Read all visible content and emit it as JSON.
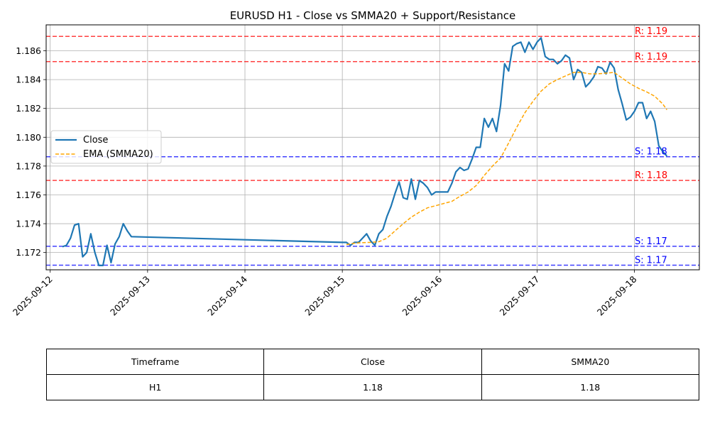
{
  "chart_data": {
    "type": "line",
    "title": "EURUSD H1 - Close vs SMMA20 + Support/Resistance",
    "xlabel": "",
    "ylabel": "",
    "x_tick_labels": [
      "2025-09-12",
      "2025-09-13",
      "2025-09-14",
      "2025-09-15",
      "2025-09-16",
      "2025-09-17",
      "2025-09-18"
    ],
    "y_tick_labels": [
      "1.172",
      "1.174",
      "1.176",
      "1.178",
      "1.180",
      "1.182",
      "1.184",
      "1.186"
    ],
    "xlim": [
      "2025-09-11T23:00",
      "2025-09-18T16:00"
    ],
    "ylim": [
      1.1708,
      1.1878
    ],
    "grid": true,
    "legend_position": "center-left",
    "series": [
      {
        "name": "Close",
        "color": "#1f77b4",
        "style": "solid",
        "points": [
          [
            "2025-09-12T03:00",
            1.1724
          ],
          [
            "2025-09-12T04:00",
            1.1725
          ],
          [
            "2025-09-12T05:00",
            1.173
          ],
          [
            "2025-09-12T06:00",
            1.1739
          ],
          [
            "2025-09-12T07:00",
            1.174
          ],
          [
            "2025-09-12T08:00",
            1.1717
          ],
          [
            "2025-09-12T09:00",
            1.172
          ],
          [
            "2025-09-12T10:00",
            1.1733
          ],
          [
            "2025-09-12T11:00",
            1.172
          ],
          [
            "2025-09-12T12:00",
            1.1711
          ],
          [
            "2025-09-12T13:00",
            1.1711
          ],
          [
            "2025-09-12T14:00",
            1.1725
          ],
          [
            "2025-09-12T15:00",
            1.1713
          ],
          [
            "2025-09-12T16:00",
            1.1726
          ],
          [
            "2025-09-12T17:00",
            1.1731
          ],
          [
            "2025-09-12T18:00",
            1.174
          ],
          [
            "2025-09-12T19:00",
            1.1735
          ],
          [
            "2025-09-12T20:00",
            1.1731
          ],
          [
            "2025-09-15T00:00",
            1.1727
          ],
          [
            "2025-09-15T01:00",
            1.1727
          ],
          [
            "2025-09-15T02:00",
            1.1725
          ],
          [
            "2025-09-15T03:00",
            1.1727
          ],
          [
            "2025-09-15T04:00",
            1.1727
          ],
          [
            "2025-09-15T05:00",
            1.173
          ],
          [
            "2025-09-15T06:00",
            1.1733
          ],
          [
            "2025-09-15T07:00",
            1.1728
          ],
          [
            "2025-09-15T08:00",
            1.1725
          ],
          [
            "2025-09-15T09:00",
            1.1733
          ],
          [
            "2025-09-15T10:00",
            1.1736
          ],
          [
            "2025-09-15T11:00",
            1.1745
          ],
          [
            "2025-09-15T12:00",
            1.1752
          ],
          [
            "2025-09-15T13:00",
            1.1761
          ],
          [
            "2025-09-15T14:00",
            1.1769
          ],
          [
            "2025-09-15T15:00",
            1.1758
          ],
          [
            "2025-09-15T16:00",
            1.1757
          ],
          [
            "2025-09-15T17:00",
            1.1771
          ],
          [
            "2025-09-15T18:00",
            1.1757
          ],
          [
            "2025-09-15T19:00",
            1.177
          ],
          [
            "2025-09-15T20:00",
            1.1768
          ],
          [
            "2025-09-15T21:00",
            1.1765
          ],
          [
            "2025-09-15T22:00",
            1.176
          ],
          [
            "2025-09-15T23:00",
            1.1762
          ],
          [
            "2025-09-16T00:00",
            1.1762
          ],
          [
            "2025-09-16T01:00",
            1.1762
          ],
          [
            "2025-09-16T02:00",
            1.1762
          ],
          [
            "2025-09-16T03:00",
            1.1768
          ],
          [
            "2025-09-16T04:00",
            1.1776
          ],
          [
            "2025-09-16T05:00",
            1.1779
          ],
          [
            "2025-09-16T06:00",
            1.1777
          ],
          [
            "2025-09-16T07:00",
            1.1778
          ],
          [
            "2025-09-16T08:00",
            1.1785
          ],
          [
            "2025-09-16T09:00",
            1.1793
          ],
          [
            "2025-09-16T10:00",
            1.1793
          ],
          [
            "2025-09-16T11:00",
            1.1813
          ],
          [
            "2025-09-16T12:00",
            1.1807
          ],
          [
            "2025-09-16T13:00",
            1.1813
          ],
          [
            "2025-09-16T14:00",
            1.1804
          ],
          [
            "2025-09-16T15:00",
            1.1822
          ],
          [
            "2025-09-16T16:00",
            1.1851
          ],
          [
            "2025-09-16T17:00",
            1.1846
          ],
          [
            "2025-09-16T18:00",
            1.1863
          ],
          [
            "2025-09-16T19:00",
            1.1865
          ],
          [
            "2025-09-16T20:00",
            1.1866
          ],
          [
            "2025-09-16T21:00",
            1.1859
          ],
          [
            "2025-09-16T22:00",
            1.1866
          ],
          [
            "2025-09-16T23:00",
            1.1861
          ],
          [
            "2025-09-17T00:00",
            1.1866
          ],
          [
            "2025-09-17T01:00",
            1.1869
          ],
          [
            "2025-09-17T02:00",
            1.1856
          ],
          [
            "2025-09-17T03:00",
            1.1854
          ],
          [
            "2025-09-17T04:00",
            1.1854
          ],
          [
            "2025-09-17T05:00",
            1.1851
          ],
          [
            "2025-09-17T06:00",
            1.1853
          ],
          [
            "2025-09-17T07:00",
            1.1857
          ],
          [
            "2025-09-17T08:00",
            1.1855
          ],
          [
            "2025-09-17T09:00",
            1.184
          ],
          [
            "2025-09-17T10:00",
            1.1847
          ],
          [
            "2025-09-17T11:00",
            1.1845
          ],
          [
            "2025-09-17T12:00",
            1.1835
          ],
          [
            "2025-09-17T13:00",
            1.1838
          ],
          [
            "2025-09-17T14:00",
            1.1842
          ],
          [
            "2025-09-17T15:00",
            1.1849
          ],
          [
            "2025-09-17T16:00",
            1.1848
          ],
          [
            "2025-09-17T17:00",
            1.1844
          ],
          [
            "2025-09-17T18:00",
            1.1852
          ],
          [
            "2025-09-17T19:00",
            1.1848
          ],
          [
            "2025-09-17T20:00",
            1.1833
          ],
          [
            "2025-09-17T21:00",
            1.1823
          ],
          [
            "2025-09-17T22:00",
            1.1812
          ],
          [
            "2025-09-17T23:00",
            1.1814
          ],
          [
            "2025-09-18T00:00",
            1.1818
          ],
          [
            "2025-09-18T01:00",
            1.1824
          ],
          [
            "2025-09-18T02:00",
            1.1824
          ],
          [
            "2025-09-18T03:00",
            1.1813
          ],
          [
            "2025-09-18T04:00",
            1.1818
          ],
          [
            "2025-09-18T05:00",
            1.1811
          ],
          [
            "2025-09-18T06:00",
            1.1794
          ],
          [
            "2025-09-18T07:00",
            1.179
          ],
          [
            "2025-09-18T08:00",
            1.1787
          ]
        ]
      },
      {
        "name": "EMA (SMMA20)",
        "color": "#ffa500",
        "style": "dashed",
        "points": [
          [
            "2025-09-15T01:00",
            1.17255
          ],
          [
            "2025-09-15T03:00",
            1.17265
          ],
          [
            "2025-09-15T05:00",
            1.17268
          ],
          [
            "2025-09-15T07:00",
            1.1727
          ],
          [
            "2025-09-15T09:00",
            1.17275
          ],
          [
            "2025-09-15T11:00",
            1.173
          ],
          [
            "2025-09-15T13:00",
            1.1735
          ],
          [
            "2025-09-15T15:00",
            1.174
          ],
          [
            "2025-09-15T17:00",
            1.17445
          ],
          [
            "2025-09-15T19:00",
            1.1748
          ],
          [
            "2025-09-15T21:00",
            1.1751
          ],
          [
            "2025-09-15T23:00",
            1.17525
          ],
          [
            "2025-09-16T01:00",
            1.1754
          ],
          [
            "2025-09-16T03:00",
            1.17555
          ],
          [
            "2025-09-16T05:00",
            1.1759
          ],
          [
            "2025-09-16T07:00",
            1.1762
          ],
          [
            "2025-09-16T09:00",
            1.17665
          ],
          [
            "2025-09-16T11:00",
            1.17735
          ],
          [
            "2025-09-16T13:00",
            1.178
          ],
          [
            "2025-09-16T15:00",
            1.17855
          ],
          [
            "2025-09-16T17:00",
            1.1796
          ],
          [
            "2025-09-16T19:00",
            1.1807
          ],
          [
            "2025-09-16T21:00",
            1.1817
          ],
          [
            "2025-09-16T23:00",
            1.1825
          ],
          [
            "2025-09-17T01:00",
            1.1832
          ],
          [
            "2025-09-17T03:00",
            1.1837
          ],
          [
            "2025-09-17T05:00",
            1.184
          ],
          [
            "2025-09-17T07:00",
            1.18425
          ],
          [
            "2025-09-17T09:00",
            1.1845
          ],
          [
            "2025-09-17T11:00",
            1.1845
          ],
          [
            "2025-09-17T13:00",
            1.1844
          ],
          [
            "2025-09-17T15:00",
            1.1844
          ],
          [
            "2025-09-17T17:00",
            1.18445
          ],
          [
            "2025-09-17T19:00",
            1.1845
          ],
          [
            "2025-09-17T21:00",
            1.1841
          ],
          [
            "2025-09-17T23:00",
            1.1837
          ],
          [
            "2025-09-18T01:00",
            1.1834
          ],
          [
            "2025-09-18T03:00",
            1.18315
          ],
          [
            "2025-09-18T05:00",
            1.18285
          ],
          [
            "2025-09-18T07:00",
            1.1823
          ],
          [
            "2025-09-18T08:00",
            1.1819
          ]
        ]
      }
    ],
    "levels": [
      {
        "kind": "resistance",
        "label": "R: 1.19",
        "value": 1.187,
        "color": "#ff0000"
      },
      {
        "kind": "resistance",
        "label": "R: 1.19",
        "value": 1.18525,
        "color": "#ff0000"
      },
      {
        "kind": "support",
        "label": "S: 1.18",
        "value": 1.17865,
        "color": "#0000ff"
      },
      {
        "kind": "resistance",
        "label": "R: 1.18",
        "value": 1.177,
        "color": "#ff0000"
      },
      {
        "kind": "support",
        "label": "S: 1.17",
        "value": 1.17243,
        "color": "#0000ff"
      },
      {
        "kind": "support",
        "label": "S: 1.17",
        "value": 1.17112,
        "color": "#0000ff"
      }
    ]
  },
  "summary_table": {
    "headers": [
      "Timeframe",
      "Close",
      "SMMA20"
    ],
    "row": [
      "H1",
      "1.18",
      "1.18"
    ]
  }
}
